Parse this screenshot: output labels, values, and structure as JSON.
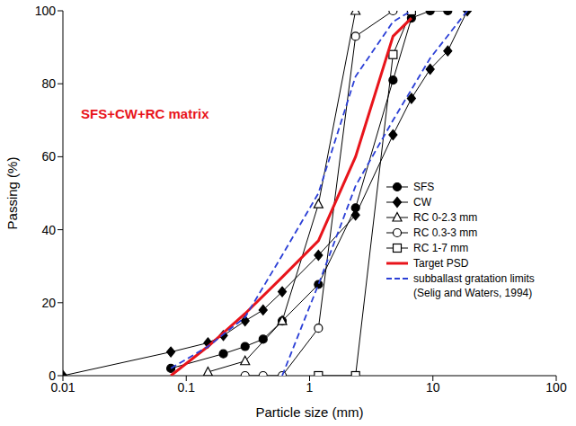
{
  "chart_data": {
    "type": "line",
    "x_label": "Particle size (mm)",
    "y_label": "Passing (%)",
    "log": "x",
    "grid": false,
    "legend": "lower right",
    "xlim": [
      0.01,
      100
    ],
    "xticks": [
      0.01,
      0.1,
      1,
      10,
      100
    ],
    "ylim": [
      0,
      100
    ],
    "yticks": [
      0,
      20,
      40,
      60,
      80,
      100
    ],
    "annotations": [
      {
        "text": "SFS+CW+RC matrix",
        "color": "#e8141b"
      }
    ],
    "series": [
      {
        "name": "SFS",
        "color": "#000000",
        "marker": "circle_filled",
        "line_style": "solid",
        "x": [
          0.075,
          0.2,
          0.3,
          0.42,
          0.6,
          1.18,
          2.36,
          4.75,
          6.7,
          9.5,
          13.2
        ],
        "values": [
          2,
          6,
          8,
          10,
          15,
          25,
          46,
          81,
          98,
          100,
          100
        ]
      },
      {
        "name": "CW",
        "color": "#000000",
        "marker": "diamond_filled",
        "line_style": "solid",
        "x": [
          0.01,
          0.075,
          0.15,
          0.2,
          0.3,
          0.42,
          0.6,
          1.18,
          2.36,
          4.75,
          6.7,
          9.5,
          13.2,
          19
        ],
        "values": [
          0,
          6.5,
          9,
          11,
          15,
          18,
          23,
          33,
          44,
          66,
          76,
          84,
          89,
          100
        ]
      },
      {
        "name": "RC 0-2.3 mm",
        "color": "#000000",
        "marker": "triangle_open",
        "line_style": "solid",
        "x": [
          0.15,
          0.3,
          0.6,
          1.18,
          2.36
        ],
        "values": [
          1,
          4,
          15,
          47,
          100
        ]
      },
      {
        "name": "RC 0.3-3 mm",
        "color": "#000000",
        "marker": "circle_open",
        "line_style": "solid",
        "x": [
          0.3,
          0.42,
          0.6,
          1.18,
          2.36,
          4.75
        ],
        "values": [
          0,
          0,
          0,
          13,
          93,
          100
        ]
      },
      {
        "name": "RC 1-7 mm",
        "color": "#000000",
        "marker": "square_open",
        "line_style": "solid",
        "x": [
          1.18,
          2.36,
          4.75,
          6.7
        ],
        "values": [
          0,
          0,
          88,
          100
        ]
      },
      {
        "name": "Target PSD",
        "color": "#e8141b",
        "marker": "none",
        "line_style": "solid",
        "x": [
          0.075,
          0.15,
          0.3,
          0.6,
          1.18,
          2.36,
          4.75,
          6.7
        ],
        "values": [
          0,
          8,
          17,
          27,
          37,
          60,
          93,
          98
        ]
      },
      {
        "name": "subballast gratation limits (Selig and Waters, 1994)",
        "color": "#2b3fd6",
        "marker": "none",
        "line_style": "dashed",
        "x": [
          0.075,
          0.15,
          0.3,
          0.6,
          1.18,
          2.36,
          4.75,
          6.7
        ],
        "values": [
          2,
          8,
          16,
          33,
          50,
          82,
          97,
          100
        ]
      },
      {
        "name": "subballast gratation limits (Selig and Waters, 1994)",
        "color": "#2b3fd6",
        "marker": "none",
        "line_style": "dashed",
        "x": [
          0.6,
          1.18,
          2.36,
          4.75,
          9.5,
          19
        ],
        "values": [
          0,
          25,
          52,
          70,
          87,
          100
        ]
      }
    ]
  }
}
